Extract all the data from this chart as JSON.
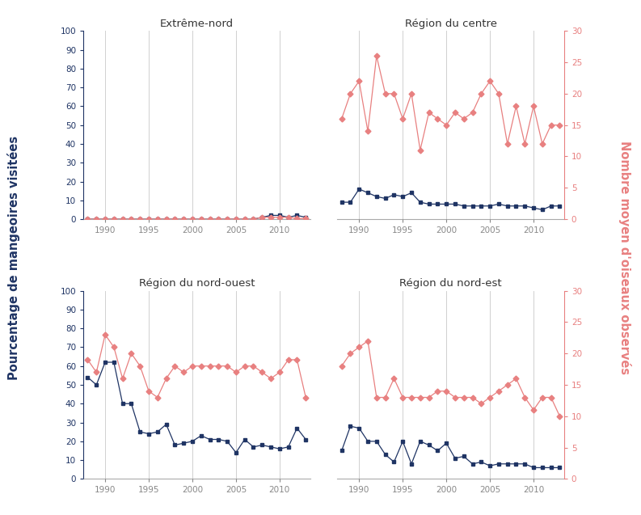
{
  "years": [
    1988,
    1989,
    1990,
    1991,
    1992,
    1993,
    1994,
    1995,
    1996,
    1997,
    1998,
    1999,
    2000,
    2001,
    2002,
    2003,
    2004,
    2005,
    2006,
    2007,
    2008,
    2009,
    2010,
    2011,
    2012,
    2013
  ],
  "extreme_nord_blue": [
    0,
    0,
    0,
    0,
    0,
    0,
    0,
    0,
    0,
    0,
    0,
    0,
    0,
    0,
    0,
    0,
    0,
    0,
    0,
    0,
    1,
    2,
    2,
    1,
    2,
    1
  ],
  "extreme_nord_red": [
    0,
    0,
    0,
    0,
    0,
    0,
    0,
    0,
    0,
    0,
    0,
    0,
    0,
    0,
    0,
    0,
    0,
    0,
    0,
    0,
    0.3,
    0.3,
    0.3,
    0.3,
    0.1,
    0.1
  ],
  "centre_blue": [
    9,
    9,
    16,
    14,
    12,
    11,
    13,
    12,
    14,
    9,
    8,
    8,
    8,
    8,
    7,
    7,
    7,
    7,
    8,
    7,
    7,
    7,
    6,
    5,
    7,
    7
  ],
  "centre_red": [
    16,
    20,
    22,
    14,
    26,
    20,
    20,
    16,
    20,
    11,
    17,
    16,
    15,
    17,
    16,
    17,
    20,
    22,
    20,
    12,
    18,
    12,
    18,
    12,
    15,
    15
  ],
  "nord_ouest_blue": [
    54,
    50,
    62,
    62,
    40,
    40,
    25,
    24,
    25,
    29,
    18,
    19,
    20,
    23,
    21,
    21,
    20,
    14,
    21,
    17,
    18,
    17,
    16,
    17,
    27,
    21
  ],
  "nord_ouest_red": [
    19,
    17,
    23,
    21,
    16,
    20,
    18,
    14,
    13,
    16,
    18,
    17,
    18,
    18,
    18,
    18,
    18,
    17,
    18,
    18,
    17,
    16,
    17,
    19,
    19,
    13
  ],
  "nord_est_blue": [
    15,
    28,
    27,
    20,
    20,
    13,
    9,
    20,
    8,
    20,
    18,
    15,
    19,
    11,
    12,
    8,
    9,
    7,
    8,
    8,
    8,
    8,
    6,
    6,
    6,
    6
  ],
  "nord_est_red": [
    18,
    20,
    21,
    22,
    13,
    13,
    16,
    13,
    13,
    13,
    13,
    14,
    14,
    13,
    13,
    13,
    12,
    13,
    14,
    15,
    16,
    13,
    11,
    13,
    13,
    10
  ],
  "titles": [
    "Extrême-nord",
    "Région du centre",
    "Région du nord-ouest",
    "Région du nord-est"
  ],
  "ylabel_left": "Pourcentage de mangeoires visitées",
  "ylabel_right": "Nombre moyen d'oiseaux observés",
  "blue_color": "#1f3464",
  "red_color": "#e88080",
  "grid_color": "#d0d0d0",
  "bg_color": "#ffffff",
  "tick_color": "#888888",
  "spine_color": "#aaaaaa"
}
